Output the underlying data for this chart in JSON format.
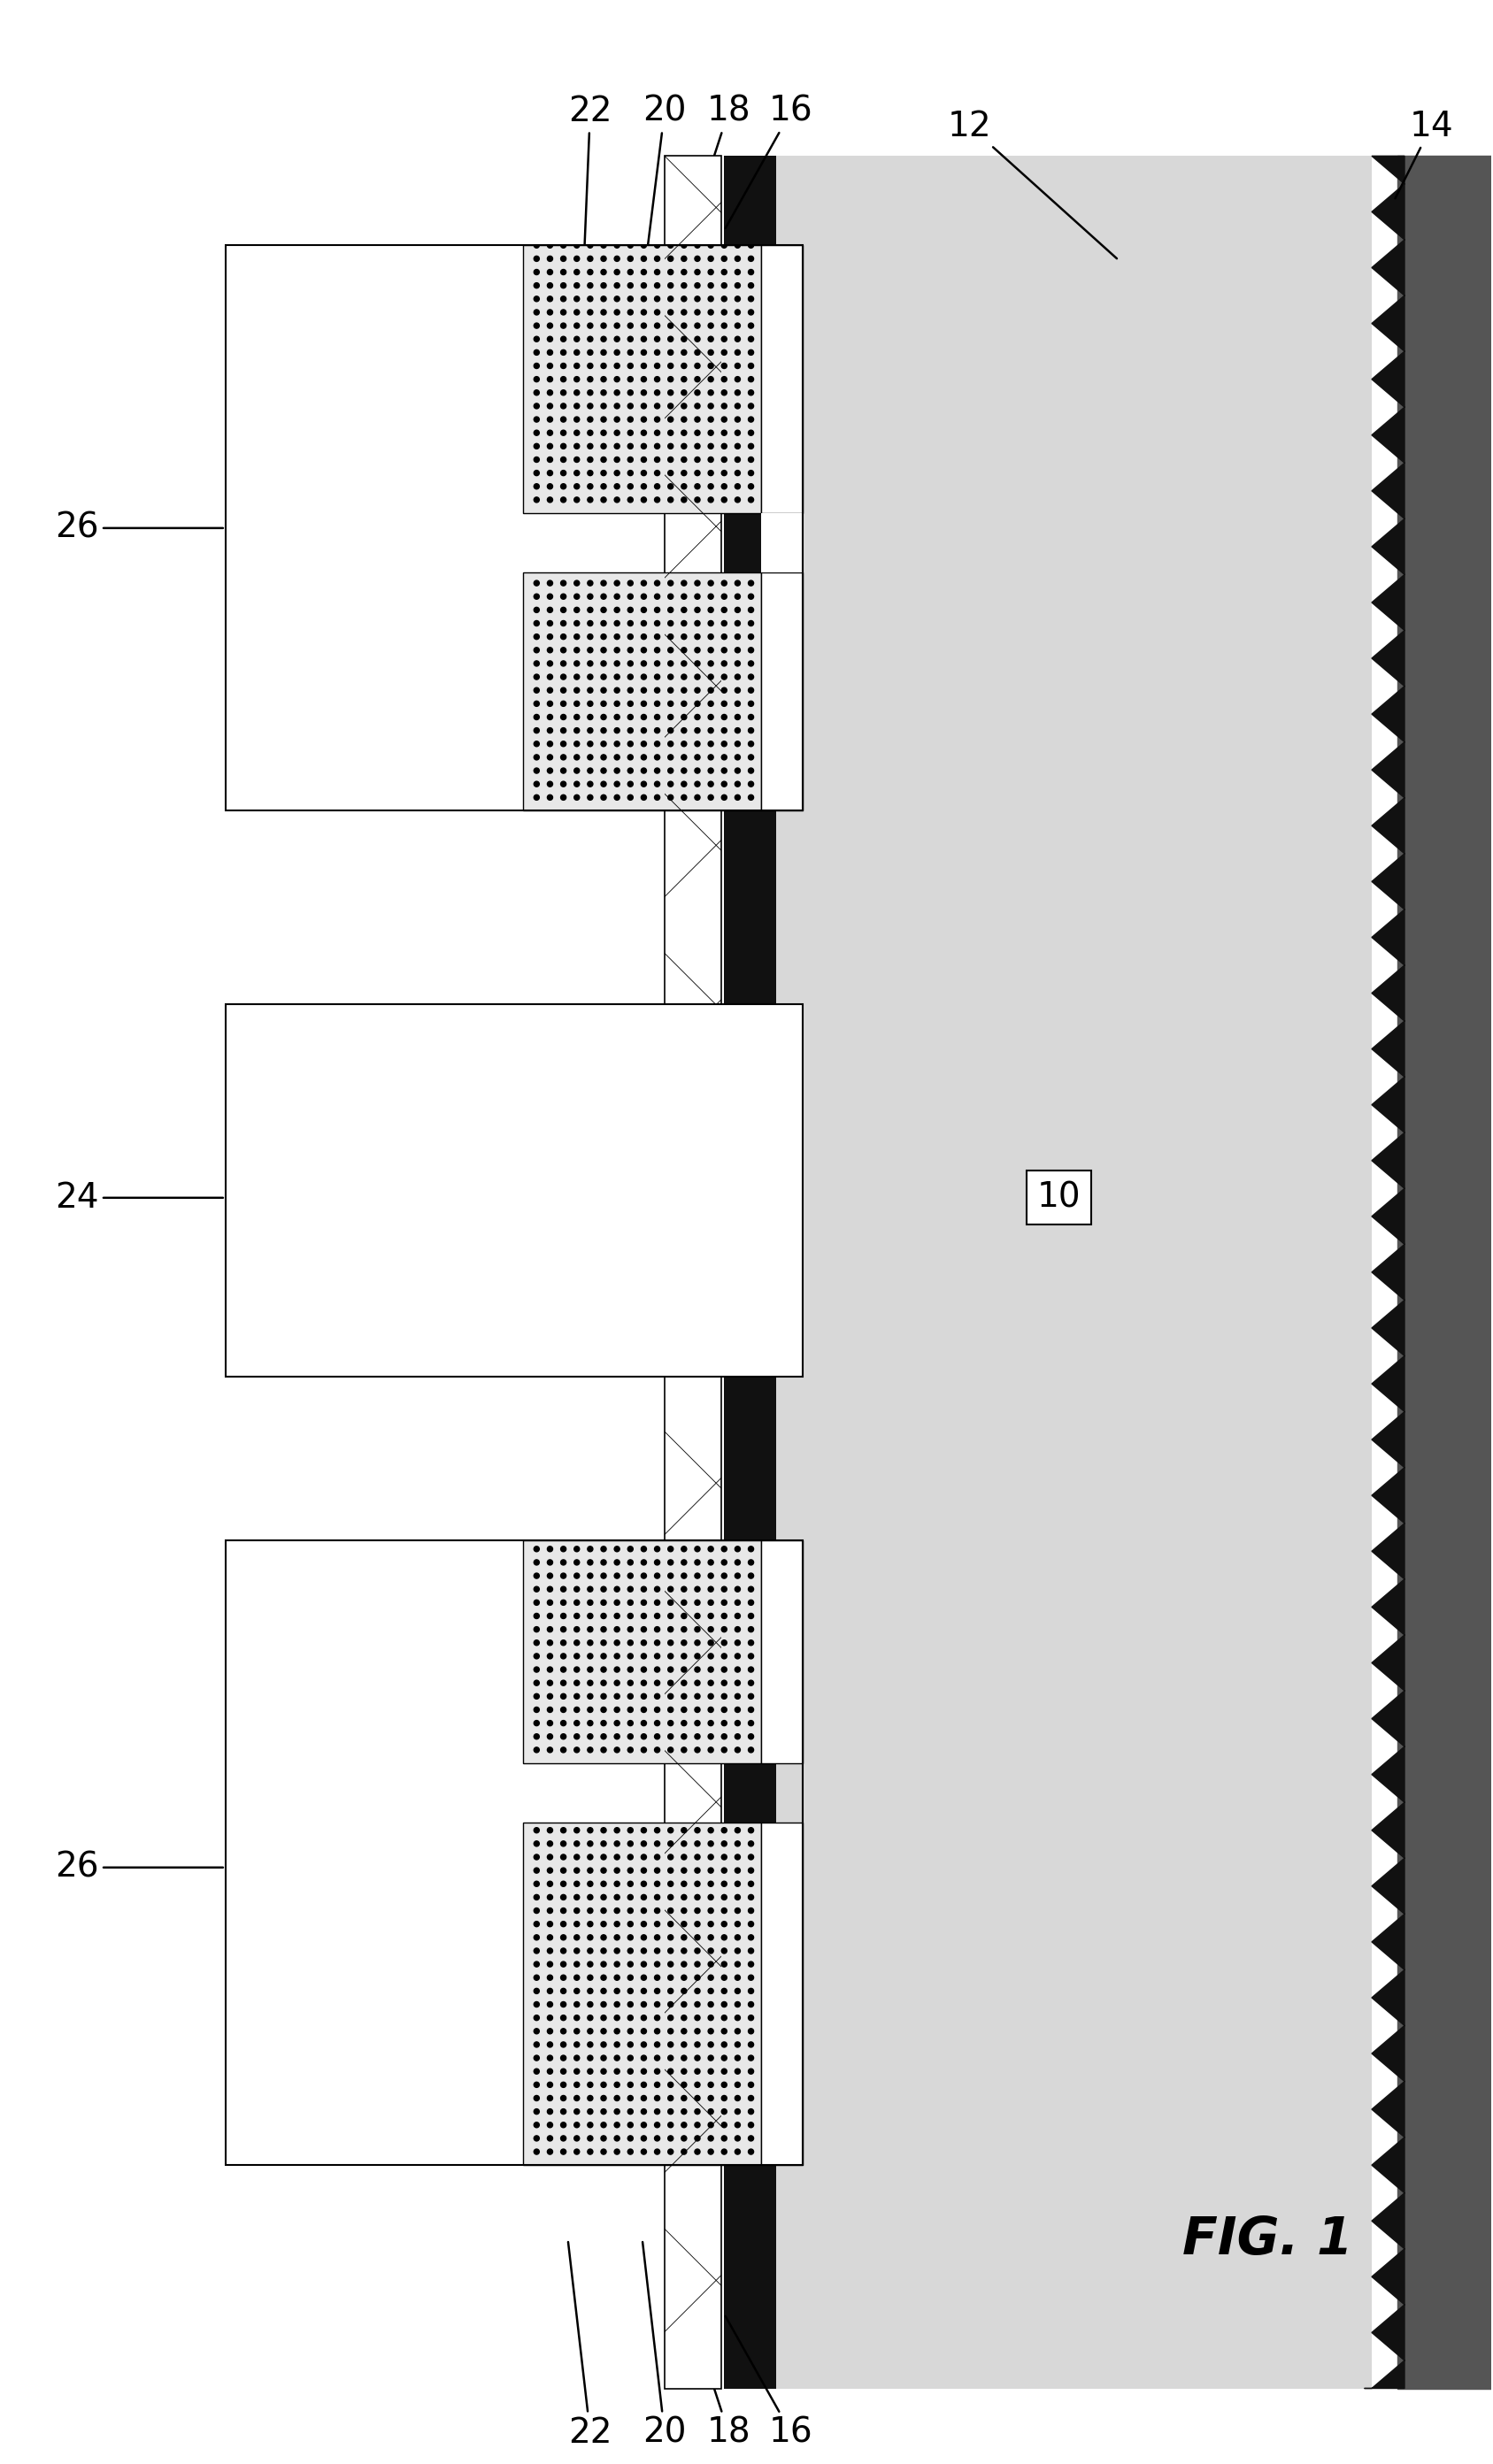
{
  "fig_width": 16.87,
  "fig_height": 27.85,
  "bg_color": "#ffffff",
  "title": "FIG. 1",
  "label_10": "10",
  "label_12": "12",
  "label_14": "14",
  "label_16": "16",
  "label_18": "18",
  "label_20": "20",
  "label_22": "22",
  "label_24": "24",
  "label_26_top": "26",
  "label_26_bot": "26",
  "bulk_color": "#d8d8d8",
  "black_layer_color": "#111111",
  "crosshatch_color": "#cccccc",
  "dotted_color": "#aaaaaa",
  "white_color": "#ffffff",
  "zigzag_color": "#222222"
}
